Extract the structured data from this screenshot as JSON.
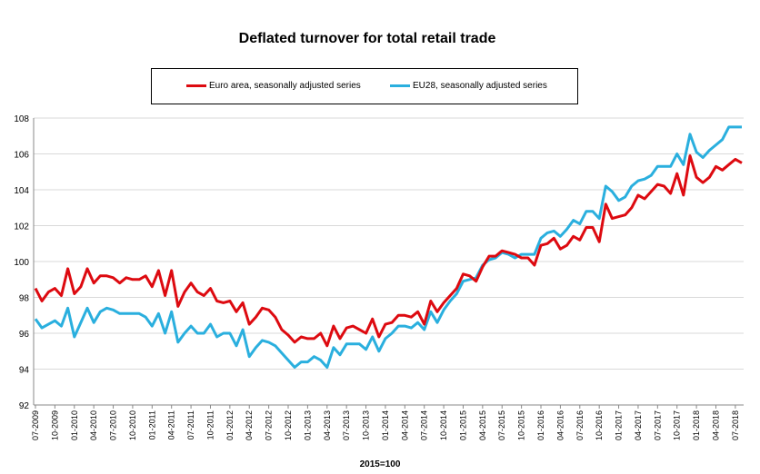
{
  "chart_data": {
    "type": "line",
    "title": "Deflated turnover for total retail trade",
    "xlabel": "2015=100",
    "ylabel": "",
    "ylim": [
      92,
      108
    ],
    "yticks": [
      92,
      94,
      96,
      98,
      100,
      102,
      104,
      106,
      108
    ],
    "grid": true,
    "legend_position": "top",
    "x_tick_labels": [
      "07-2009",
      "10-2009",
      "01-2010",
      "04-2010",
      "07-2010",
      "10-2010",
      "01-2011",
      "04-2011",
      "07-2011",
      "10-2011",
      "01-2012",
      "04-2012",
      "07-2012",
      "10-2012",
      "01-2013",
      "04-2013",
      "07-2013",
      "10-2013",
      "01-2014",
      "04-2014",
      "07-2014",
      "10-2014",
      "01-2015",
      "04-2015",
      "07-2015",
      "10-2015",
      "01-2016",
      "04-2016",
      "07-2016",
      "10-2016",
      "01-2017",
      "04-2017",
      "07-2017",
      "10-2017",
      "01-2018",
      "04-2018",
      "07-2018"
    ],
    "series": [
      {
        "name": "Euro area, seasonally adjusted series",
        "color": "#dd0a10",
        "values": [
          98.5,
          97.8,
          98.3,
          98.5,
          98.1,
          99.6,
          98.2,
          98.6,
          99.6,
          98.8,
          99.2,
          99.2,
          99.1,
          98.8,
          99.1,
          99.0,
          99.0,
          99.2,
          98.6,
          99.5,
          98.1,
          99.5,
          97.5,
          98.3,
          98.8,
          98.3,
          98.1,
          98.5,
          97.8,
          97.7,
          97.8,
          97.2,
          97.7,
          96.5,
          96.9,
          97.4,
          97.3,
          96.9,
          96.2,
          95.9,
          95.5,
          95.8,
          95.7,
          95.7,
          96.0,
          95.3,
          96.4,
          95.7,
          96.3,
          96.4,
          96.2,
          96.0,
          96.8,
          95.8,
          96.5,
          96.6,
          97.0,
          97.0,
          96.9,
          97.2,
          96.5,
          97.8,
          97.2,
          97.7,
          98.1,
          98.5,
          99.3,
          99.2,
          98.9,
          99.7,
          100.3,
          100.3,
          100.6,
          100.5,
          100.4,
          100.2,
          100.2,
          99.8,
          100.9,
          101.0,
          101.3,
          100.7,
          100.9,
          101.4,
          101.2,
          101.9,
          101.9,
          101.1,
          103.2,
          102.4,
          102.5,
          102.6,
          103.0,
          103.7,
          103.5,
          103.9,
          104.3,
          104.2,
          103.8,
          104.9,
          103.7,
          105.9,
          104.7,
          104.4,
          104.7,
          105.3,
          105.1,
          105.4,
          105.7,
          105.5
        ]
      },
      {
        "name": "EU28, seasonally adjusted series",
        "color": "#2aafde",
        "values": [
          96.8,
          96.3,
          96.5,
          96.7,
          96.4,
          97.4,
          95.8,
          96.6,
          97.4,
          96.6,
          97.2,
          97.4,
          97.3,
          97.1,
          97.1,
          97.1,
          97.1,
          96.9,
          96.4,
          97.1,
          96.0,
          97.2,
          95.5,
          96.0,
          96.4,
          96.0,
          96.0,
          96.5,
          95.8,
          96.0,
          96.0,
          95.3,
          96.2,
          94.7,
          95.2,
          95.6,
          95.5,
          95.3,
          94.9,
          94.5,
          94.1,
          94.4,
          94.4,
          94.7,
          94.5,
          94.1,
          95.2,
          94.8,
          95.4,
          95.4,
          95.4,
          95.1,
          95.8,
          95.0,
          95.7,
          96.0,
          96.4,
          96.4,
          96.3,
          96.6,
          96.2,
          97.2,
          96.6,
          97.3,
          97.8,
          98.2,
          98.9,
          99.0,
          99.1,
          99.8,
          100.1,
          100.2,
          100.5,
          100.4,
          100.2,
          100.4,
          100.4,
          100.4,
          101.3,
          101.6,
          101.7,
          101.4,
          101.8,
          102.3,
          102.1,
          102.8,
          102.8,
          102.4,
          104.2,
          103.9,
          103.4,
          103.6,
          104.2,
          104.5,
          104.6,
          104.8,
          105.3,
          105.3,
          105.3,
          106.0,
          105.4,
          107.1,
          106.1,
          105.8,
          106.2,
          106.5,
          106.8,
          107.5,
          107.5,
          107.5
        ]
      }
    ]
  }
}
